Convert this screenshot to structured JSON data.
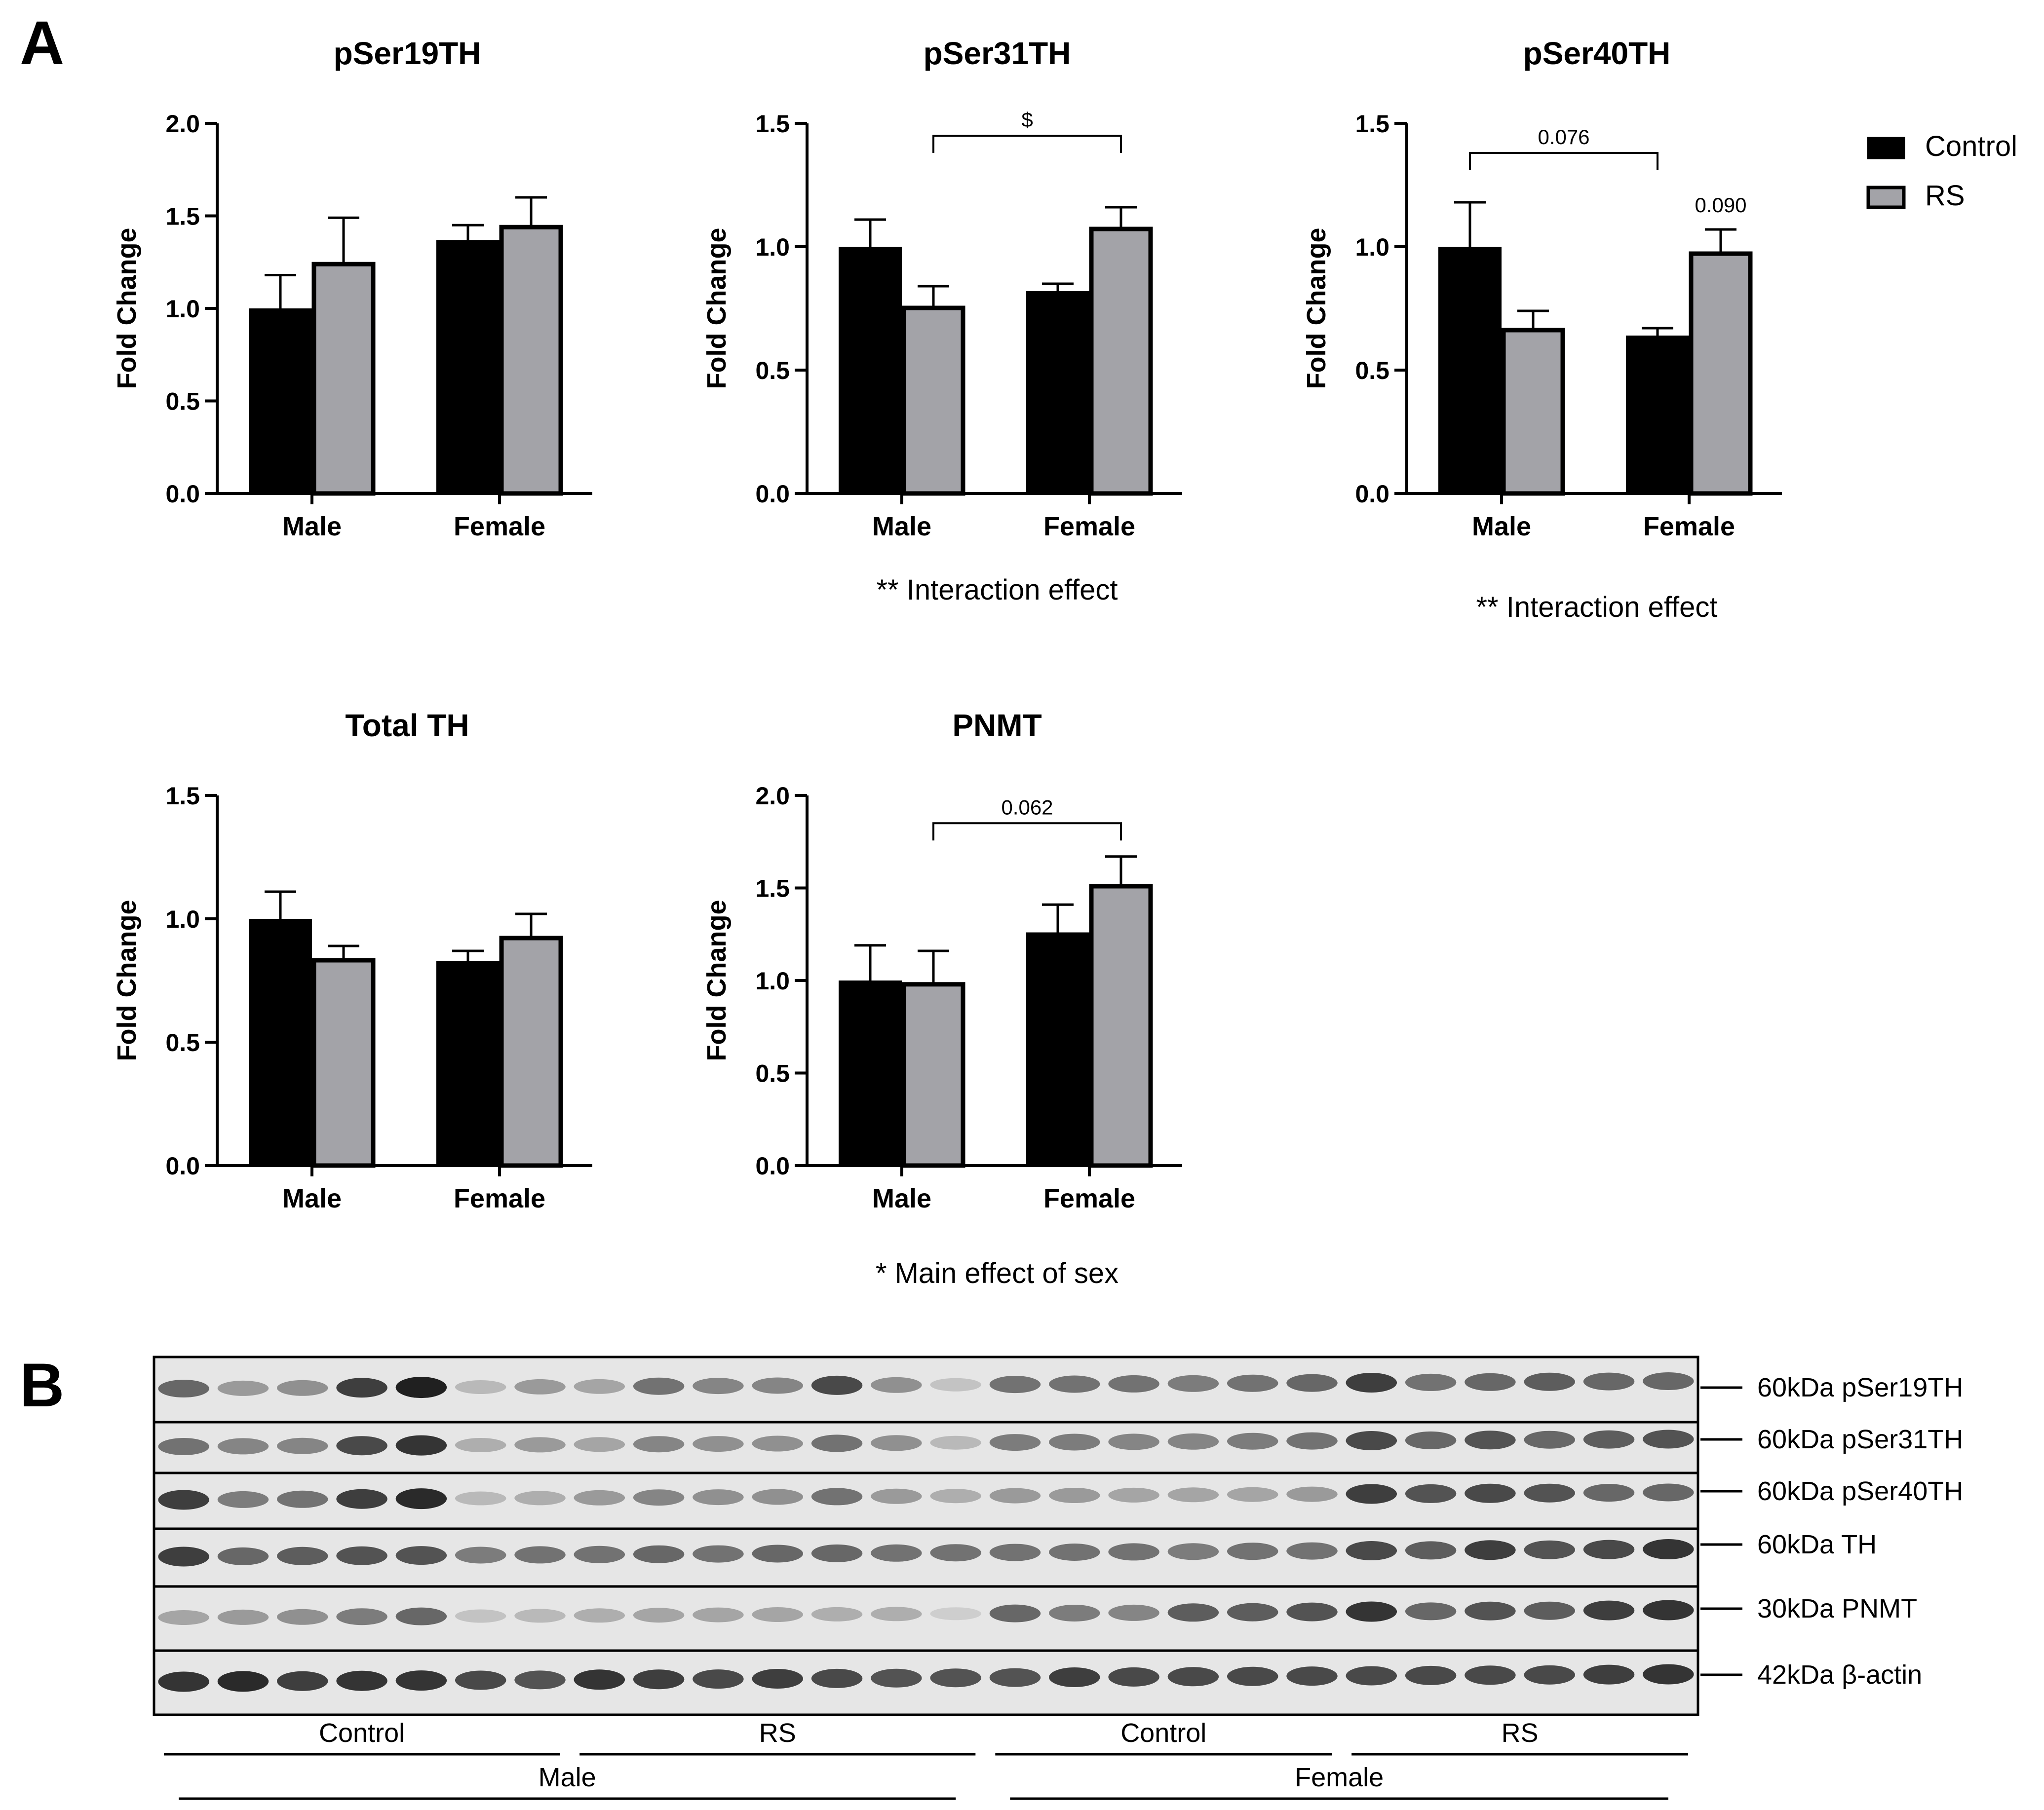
{
  "figure": {
    "panel_a_label": "A",
    "panel_b_label": "B"
  },
  "legend": {
    "position": "top-right",
    "items": [
      {
        "label": "Control",
        "color": "#000000"
      },
      {
        "label": "RS",
        "color": "#a3a3a8"
      }
    ]
  },
  "chart_data": [
    {
      "type": "bar",
      "title": "pSer19TH",
      "ylabel": "Fold Change",
      "categories": [
        "Male",
        "Female"
      ],
      "ylim": [
        0,
        2.0
      ],
      "yticks": [
        "0.0",
        "0.5",
        "1.0",
        "1.5",
        "2.0"
      ],
      "tick_values": [
        0,
        0.5,
        1.0,
        1.5,
        2.0
      ],
      "series": [
        {
          "name": "Control",
          "values": [
            1.0,
            1.37
          ],
          "errors": [
            0.18,
            0.08
          ]
        },
        {
          "name": "RS",
          "values": [
            1.25,
            1.45
          ],
          "errors": [
            0.24,
            0.15
          ]
        }
      ],
      "brackets": [],
      "annotations": [],
      "footnote": ""
    },
    {
      "type": "bar",
      "title": "pSer31TH",
      "ylabel": "Fold Change",
      "categories": [
        "Male",
        "Female"
      ],
      "ylim": [
        0,
        1.5
      ],
      "yticks": [
        "0.0",
        "0.5",
        "1.0",
        "1.5"
      ],
      "tick_values": [
        0,
        0.5,
        1.0,
        1.5
      ],
      "series": [
        {
          "name": "Control",
          "values": [
            1.0,
            0.82
          ],
          "errors": [
            0.11,
            0.03
          ]
        },
        {
          "name": "RS",
          "values": [
            0.76,
            1.08
          ],
          "errors": [
            0.08,
            0.08
          ]
        }
      ],
      "brackets": [
        {
          "label": "$",
          "from": "Male RS",
          "to": "Female RS",
          "y": 1.45
        }
      ],
      "annotations": [],
      "footnote": "** Interaction effect"
    },
    {
      "type": "bar",
      "title": "pSer40TH",
      "ylabel": "Fold Change",
      "categories": [
        "Male",
        "Female"
      ],
      "ylim": [
        0,
        1.5
      ],
      "yticks": [
        "0.0",
        "0.5",
        "1.0",
        "1.5"
      ],
      "tick_values": [
        0,
        0.5,
        1.0,
        1.5
      ],
      "series": [
        {
          "name": "Control",
          "values": [
            1.0,
            0.64
          ],
          "errors": [
            0.18,
            0.03
          ]
        },
        {
          "name": "RS",
          "values": [
            0.67,
            0.98
          ],
          "errors": [
            0.07,
            0.09
          ]
        }
      ],
      "brackets": [
        {
          "label": "0.076",
          "from": "Male Control",
          "to": "Female Control",
          "y": 1.38
        }
      ],
      "annotations": [
        {
          "label": "0.090",
          "over": "Female RS"
        }
      ],
      "footnote": "** Interaction effect"
    },
    {
      "type": "bar",
      "title": "Total TH",
      "ylabel": "Fold Change",
      "categories": [
        "Male",
        "Female"
      ],
      "ylim": [
        0,
        1.5
      ],
      "yticks": [
        "0.0",
        "0.5",
        "1.0",
        "1.5"
      ],
      "tick_values": [
        0,
        0.5,
        1.0,
        1.5
      ],
      "series": [
        {
          "name": "Control",
          "values": [
            1.0,
            0.83
          ],
          "errors": [
            0.11,
            0.04
          ]
        },
        {
          "name": "RS",
          "values": [
            0.84,
            0.93
          ],
          "errors": [
            0.05,
            0.09
          ]
        }
      ],
      "brackets": [],
      "annotations": [],
      "footnote": ""
    },
    {
      "type": "bar",
      "title": "PNMT",
      "ylabel": "Fold Change",
      "categories": [
        "Male",
        "Female"
      ],
      "ylim": [
        0,
        2.0
      ],
      "yticks": [
        "0.0",
        "0.5",
        "1.0",
        "1.5",
        "2.0"
      ],
      "tick_values": [
        0,
        0.5,
        1.0,
        1.5,
        2.0
      ],
      "series": [
        {
          "name": "Control",
          "values": [
            1.0,
            1.26
          ],
          "errors": [
            0.19,
            0.15
          ]
        },
        {
          "name": "RS",
          "values": [
            0.99,
            1.52
          ],
          "errors": [
            0.17,
            0.15
          ]
        }
      ],
      "brackets": [
        {
          "label": "0.062",
          "from": "Male RS",
          "to": "Female RS",
          "y": 1.85
        }
      ],
      "annotations": [],
      "footnote": "* Main effect of sex"
    }
  ],
  "blot": {
    "lanes": 26,
    "rows": [
      {
        "label": "60kDa pSer19TH",
        "intensity": [
          0.6,
          0.35,
          0.4,
          0.8,
          0.95,
          0.2,
          0.35,
          0.3,
          0.55,
          0.45,
          0.45,
          0.75,
          0.4,
          0.15,
          0.55,
          0.55,
          0.55,
          0.5,
          0.55,
          0.6,
          0.8,
          0.55,
          0.6,
          0.65,
          0.6,
          0.6
        ]
      },
      {
        "label": "60kDa pSer31TH",
        "intensity": [
          0.55,
          0.45,
          0.45,
          0.75,
          0.85,
          0.25,
          0.35,
          0.3,
          0.45,
          0.4,
          0.4,
          0.55,
          0.4,
          0.2,
          0.5,
          0.5,
          0.45,
          0.45,
          0.5,
          0.55,
          0.75,
          0.6,
          0.7,
          0.6,
          0.65,
          0.7
        ]
      },
      {
        "label": "60kDa pSer40TH",
        "intensity": [
          0.8,
          0.5,
          0.55,
          0.8,
          0.9,
          0.2,
          0.25,
          0.35,
          0.45,
          0.4,
          0.4,
          0.55,
          0.35,
          0.25,
          0.35,
          0.35,
          0.3,
          0.3,
          0.3,
          0.35,
          0.8,
          0.7,
          0.75,
          0.7,
          0.6,
          0.6
        ]
      },
      {
        "label": "60kDa TH",
        "intensity": [
          0.8,
          0.6,
          0.65,
          0.7,
          0.7,
          0.5,
          0.55,
          0.55,
          0.6,
          0.55,
          0.6,
          0.6,
          0.55,
          0.55,
          0.55,
          0.55,
          0.55,
          0.5,
          0.55,
          0.55,
          0.75,
          0.65,
          0.8,
          0.7,
          0.75,
          0.85
        ]
      },
      {
        "label": "30kDa PNMT",
        "intensity": [
          0.3,
          0.35,
          0.4,
          0.5,
          0.6,
          0.15,
          0.2,
          0.25,
          0.3,
          0.3,
          0.3,
          0.25,
          0.25,
          0.1,
          0.6,
          0.5,
          0.45,
          0.65,
          0.65,
          0.7,
          0.85,
          0.6,
          0.7,
          0.65,
          0.8,
          0.85
        ]
      },
      {
        "label": "42kDa β-actin",
        "intensity": [
          0.85,
          0.9,
          0.8,
          0.85,
          0.85,
          0.75,
          0.7,
          0.85,
          0.8,
          0.75,
          0.8,
          0.75,
          0.7,
          0.7,
          0.7,
          0.8,
          0.75,
          0.75,
          0.75,
          0.75,
          0.75,
          0.75,
          0.75,
          0.75,
          0.8,
          0.85
        ]
      }
    ],
    "groups": [
      {
        "label": "Control",
        "lanes": [
          0,
          7
        ]
      },
      {
        "label": "RS",
        "lanes": [
          7,
          14
        ]
      },
      {
        "label": "Control",
        "lanes": [
          14,
          20
        ]
      },
      {
        "label": "RS",
        "lanes": [
          20,
          26
        ]
      }
    ],
    "sexes": [
      {
        "label": "Male",
        "lanes": [
          0,
          14
        ]
      },
      {
        "label": "Female",
        "lanes": [
          14,
          26
        ]
      }
    ]
  }
}
